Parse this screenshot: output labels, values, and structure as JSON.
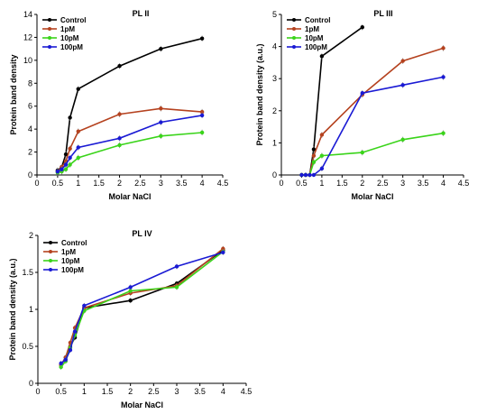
{
  "chart_data": [
    {
      "type": "line",
      "title": "PL II",
      "xlabel": "Molar NaCl",
      "ylabel": "Protein band density",
      "xlim": [
        0,
        4.5
      ],
      "ylim": [
        0,
        14
      ],
      "xticks": [
        "0",
        "0.5",
        "1",
        "1.5",
        "2",
        "2.5",
        "3",
        "3.5",
        "4",
        "4.5"
      ],
      "yticks": [
        "0",
        "2",
        "4",
        "6",
        "8",
        "10",
        "12",
        "14"
      ],
      "legend": "top-left",
      "series": [
        {
          "name": "Control",
          "color": "#000000",
          "x": [
            0.5,
            0.6,
            0.7,
            0.8,
            1,
            2,
            3,
            4
          ],
          "y": [
            0.4,
            0.7,
            1.8,
            5.0,
            7.5,
            9.5,
            11.0,
            11.9
          ]
        },
        {
          "name": "1pM",
          "color": "#b5421f",
          "x": [
            0.5,
            0.6,
            0.7,
            0.8,
            1,
            2,
            3,
            4
          ],
          "y": [
            0.3,
            0.7,
            1.2,
            2.3,
            3.8,
            5.3,
            5.8,
            5.5
          ]
        },
        {
          "name": "10pM",
          "color": "#3ad41a",
          "x": [
            0.5,
            0.6,
            0.7,
            0.8,
            1,
            2,
            3,
            4
          ],
          "y": [
            0.2,
            0.3,
            0.5,
            0.9,
            1.5,
            2.6,
            3.4,
            3.7
          ]
        },
        {
          "name": "100pM",
          "color": "#1a1ad4",
          "x": [
            0.5,
            0.6,
            0.7,
            0.8,
            1,
            2,
            3,
            4
          ],
          "y": [
            0.3,
            0.5,
            0.9,
            1.5,
            2.4,
            3.2,
            4.6,
            5.2
          ]
        }
      ]
    },
    {
      "type": "line",
      "title": "PL III",
      "xlabel": "Molar NaCl",
      "ylabel": "Protein band density (a.u.)",
      "xlim": [
        0,
        4.5
      ],
      "ylim": [
        0,
        5
      ],
      "xticks": [
        "0",
        "0.5",
        "1",
        "1.5",
        "2",
        "2.5",
        "3",
        "3.5",
        "4",
        "4.5"
      ],
      "yticks": [
        "0",
        "1",
        "2",
        "3",
        "4",
        "5"
      ],
      "legend": "top-left",
      "series": [
        {
          "name": "Control",
          "color": "#000000",
          "x": [
            0.5,
            0.6,
            0.7,
            0.8,
            1,
            2
          ],
          "y": [
            0,
            0,
            0,
            0.8,
            3.7,
            4.6
          ]
        },
        {
          "name": "1pM",
          "color": "#b5421f",
          "x": [
            0.5,
            0.6,
            0.7,
            0.8,
            1,
            2,
            3,
            4
          ],
          "y": [
            0,
            0,
            0,
            0.6,
            1.25,
            2.5,
            3.55,
            3.95
          ]
        },
        {
          "name": "10pM",
          "color": "#3ad41a",
          "x": [
            0.5,
            0.6,
            0.7,
            0.8,
            1,
            2,
            3,
            4
          ],
          "y": [
            0,
            0,
            0,
            0.4,
            0.6,
            0.7,
            1.1,
            1.3
          ]
        },
        {
          "name": "100pM",
          "color": "#1a1ad4",
          "x": [
            0.5,
            0.6,
            0.7,
            0.8,
            1,
            2,
            3,
            4
          ],
          "y": [
            0,
            0,
            0,
            0,
            0.2,
            2.55,
            2.8,
            3.05
          ]
        }
      ]
    },
    {
      "type": "line",
      "title": "PL IV",
      "xlabel": "Molar NaCl",
      "ylabel": "Protein band density (a.u.)",
      "xlim": [
        0,
        4.5
      ],
      "ylim": [
        0,
        2
      ],
      "xticks": [
        "0",
        "0.5",
        "1",
        "1.5",
        "2",
        "2.5",
        "3",
        "3.5",
        "4",
        "4.5"
      ],
      "yticks": [
        "0",
        "0.5",
        "1",
        "1.5",
        "2"
      ],
      "legend": "top-left",
      "series": [
        {
          "name": "Control",
          "color": "#000000",
          "x": [
            0.5,
            0.6,
            0.7,
            0.8,
            1,
            2,
            3,
            4
          ],
          "y": [
            0.25,
            0.35,
            0.5,
            0.62,
            1.02,
            1.12,
            1.35,
            1.8
          ]
        },
        {
          "name": "1pM",
          "color": "#b5421f",
          "x": [
            0.5,
            0.6,
            0.7,
            0.8,
            1,
            2,
            3,
            4
          ],
          "y": [
            0.25,
            0.35,
            0.55,
            0.75,
            1.02,
            1.22,
            1.32,
            1.82
          ]
        },
        {
          "name": "10pM",
          "color": "#3ad41a",
          "x": [
            0.5,
            0.6,
            0.7,
            0.8,
            1,
            2,
            3,
            4
          ],
          "y": [
            0.22,
            0.3,
            0.48,
            0.65,
            0.98,
            1.25,
            1.3,
            1.78
          ]
        },
        {
          "name": "100pM",
          "color": "#1a1ad4",
          "x": [
            0.5,
            0.6,
            0.7,
            0.8,
            1,
            2,
            3,
            4
          ],
          "y": [
            0.27,
            0.32,
            0.45,
            0.7,
            1.05,
            1.3,
            1.58,
            1.77
          ]
        }
      ]
    }
  ]
}
